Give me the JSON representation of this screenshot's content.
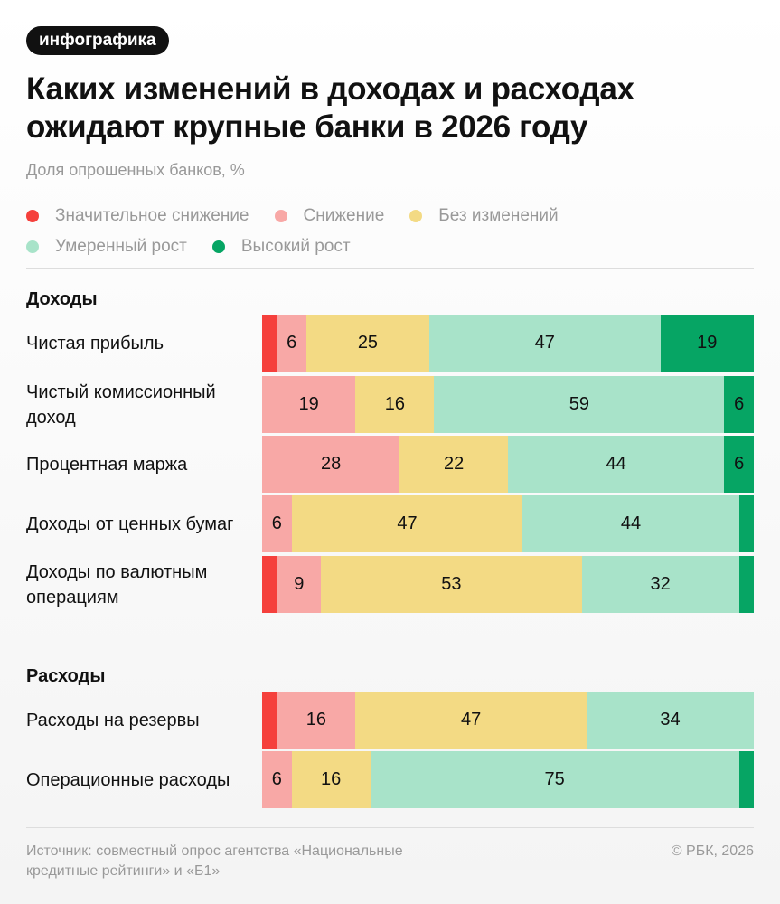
{
  "badge": "инфографика",
  "title": "Каких изменений в доходах и расходах ожидают крупные банки в 2026 году",
  "subtitle": "Доля опрошенных банков, %",
  "footer": {
    "source": "Источник: совместный опрос агентства «Национальные кредитные рейтинги» и «Б1»",
    "copyright": "© РБК, 2026"
  },
  "chart_data": {
    "type": "bar",
    "orientation": "horizontal-stacked",
    "title": "Каких изменений в доходах и расходах ожидают крупные банки в 2026 году",
    "subtitle": "Доля опрошенных банков, %",
    "legend_placement": "top",
    "series": [
      {
        "name": "Значительное снижение",
        "color": "#f5403c"
      },
      {
        "name": "Снижение",
        "color": "#f8a8a6"
      },
      {
        "name": "Без изменений",
        "color": "#f3da84"
      },
      {
        "name": "Умеренный рост",
        "color": "#a8e3c9"
      },
      {
        "name": "Высокий рост",
        "color": "#06a564"
      }
    ],
    "groups": [
      {
        "name": "Доходы",
        "rows": [
          {
            "label": "Чистая прибыль",
            "values": [
              3,
              6,
              25,
              47,
              19
            ]
          },
          {
            "label": "Чистый комиссионный доход",
            "values": [
              0,
              19,
              16,
              59,
              6
            ]
          },
          {
            "label": "Процентная маржа",
            "values": [
              0,
              28,
              22,
              44,
              6
            ]
          },
          {
            "label": "Доходы от ценных бумаг",
            "values": [
              0,
              6,
              47,
              44,
              3
            ]
          },
          {
            "label": "Доходы по валютным операциям",
            "values": [
              3,
              9,
              53,
              32,
              3
            ]
          }
        ]
      },
      {
        "name": "Расходы",
        "rows": [
          {
            "label": "Расходы на резервы",
            "values": [
              3,
              16,
              47,
              34,
              0
            ]
          },
          {
            "label": "Операционные расходы",
            "values": [
              0,
              6,
              16,
              75,
              3
            ]
          }
        ]
      }
    ]
  }
}
